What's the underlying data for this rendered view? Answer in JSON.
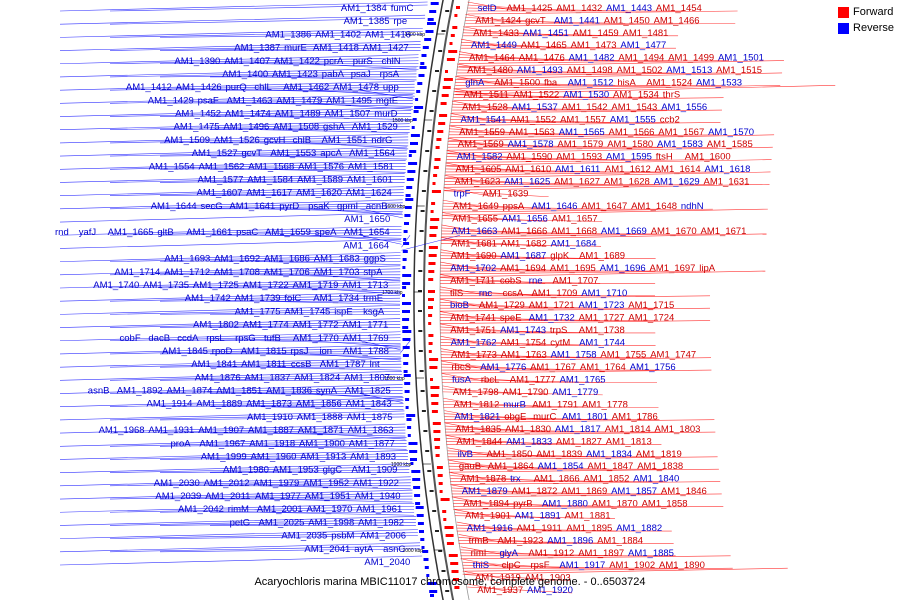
{
  "caption": "Acaryochloris marina MBIC11017 chromosome, complete genome. - 0..6503724",
  "legend": [
    {
      "label": "Forward",
      "color": "#ff0000"
    },
    {
      "label": "Reverse",
      "color": "#0000ff"
    }
  ],
  "colors": {
    "forward": "#ff0000",
    "reverse": "#0000ff",
    "backbone": "#555555"
  },
  "scale_ticks": [
    "1400 kbp",
    "1500 kbp",
    "1600 kbp",
    "1700 kbp",
    "1800 kbp",
    "1900 kbp",
    "2000 kbp"
  ],
  "left_labels": [
    [
      [
        "AM1_1384",
        "fumC"
      ]
    ],
    [
      [
        "AM1_1385",
        "rpe"
      ]
    ],
    [
      [
        "AM1_1386",
        "AM1_1402",
        "AM1_1416"
      ]
    ],
    [
      [
        "AM1_1387",
        "murE",
        "AM1_1418",
        "AM1_1427"
      ]
    ],
    [
      [
        "AM1_1390",
        "AM1_1407",
        "AM1_1422",
        "pcrA",
        "purS",
        "chlN"
      ]
    ],
    [
      [
        "AM1_1400",
        "AM1_1423",
        "pabA",
        "psaJ",
        "rpsA"
      ]
    ],
    [
      [
        "AM1_1412",
        "AM1_1426",
        "purQ",
        "chlL",
        "AM1_1462",
        "AM1_1478",
        "upp"
      ]
    ],
    [
      [
        "AM1_1429",
        "psaF",
        "AM1_1463",
        "AM1_1479",
        "AM1_1495",
        "mgtE"
      ]
    ],
    [
      [
        "AM1_1452",
        "AM1_1474",
        "AM1_1489",
        "AM1_1507",
        "murD"
      ]
    ],
    [
      [
        "AM1_1475",
        "AM1_1496",
        "AM1_1508",
        "gshA",
        "AM1_1529"
      ]
    ],
    [
      [
        "AM1_1509",
        "AM1_1526",
        "gcvH",
        "chlB",
        "AM1_1551",
        "ndrG"
      ]
    ],
    [
      [
        "AM1_1527",
        "gcvT",
        "AM1_1553",
        "apcA",
        "AM1_1564"
      ]
    ],
    [
      [
        "AM1_1554",
        "AM1_1562",
        "AM1_1568",
        "AM1_1576",
        "AM1_1581"
      ]
    ],
    [
      [
        "AM1_1577",
        "AM1_1584",
        "AM1_1589",
        "AM1_1601"
      ]
    ],
    [
      [
        "AM1_1607",
        "AM1_1617",
        "AM1_1620",
        "AM1_1624"
      ]
    ],
    [
      [
        "AM1_1644",
        "secG",
        "AM1_1641",
        "pyrD",
        "psaK",
        "gpmI",
        "acnB"
      ]
    ],
    [
      [
        "AM1_1650"
      ]
    ],
    [
      [
        "rnd",
        "yafJ",
        "AM1_1665",
        "gltB",
        "AM1_1661",
        "psaC",
        "AM1_1659",
        "speA",
        "AM1_1654"
      ]
    ],
    [
      [
        "AM1_1664"
      ]
    ],
    [
      [
        "AM1_1693",
        "AM1_1692",
        "AM1_1686",
        "AM1_1683",
        "ggpS"
      ]
    ],
    [
      [
        "AM1_1714",
        "AM1_1712",
        "AM1_1708",
        "AM1_1706",
        "AM1_1703",
        "stpA"
      ]
    ],
    [
      [
        "AM1_1740",
        "AM1_1735",
        "AM1_1725",
        "AM1_1722",
        "AM1_1719",
        "AM1_1713"
      ]
    ],
    [
      [
        "AM1_1742",
        "AM1_1739",
        "folC",
        "AM1_1734",
        "trmE"
      ]
    ],
    [
      [
        "AM1_1775",
        "AM1_1745",
        "ispE",
        "ksgA"
      ]
    ],
    [
      [
        "AM1_1802",
        "AM1_1774",
        "AM1_1772",
        "AM1_1771"
      ]
    ],
    [
      [
        "cobF",
        "dacB",
        "ccdA",
        "rpsL",
        "rpsG",
        "tufB",
        "AM1_1770",
        "AM1_1769"
      ]
    ],
    [
      [
        "AM1_1845",
        "rpoD",
        "AM1_1815",
        "rpsJ",
        "ion",
        "AM1_1788"
      ]
    ],
    [
      [
        "AM1_1841",
        "AM1_1811",
        "ccsB",
        "AM1_1787",
        "lnt"
      ]
    ],
    [
      [
        "AM1_1876",
        "AM1_1837",
        "AM1_1824",
        "AM1_1807"
      ]
    ],
    [
      [
        "asnB",
        "AM1_1892",
        "AM1_1874",
        "AM1_1851",
        "AM1_1836",
        "synA",
        "AM1_1825"
      ]
    ],
    [
      [
        "AM1_1914",
        "AM1_1889",
        "AM1_1873",
        "AM1_1856",
        "AM1_1843"
      ]
    ],
    [
      [
        "AM1_1910",
        "AM1_1888",
        "AM1_1875"
      ]
    ],
    [
      [
        "AM1_1968",
        "AM1_1931",
        "AM1_1907",
        "AM1_1887",
        "AM1_1871",
        "AM1_1863"
      ]
    ],
    [
      [
        "proA",
        "AM1_1967",
        "AM1_1918",
        "AM1_1900",
        "AM1_1877"
      ]
    ],
    [
      [
        "AM1_1999",
        "AM1_1960",
        "AM1_1913",
        "AM1_1893"
      ]
    ],
    [
      [
        "AM1_1980",
        "AM1_1953",
        "glgC",
        "AM1_1909"
      ]
    ],
    [
      [
        "AM1_2030",
        "AM1_2012",
        "AM1_1979",
        "AM1_1952",
        "AM1_1922"
      ]
    ],
    [
      [
        "AM1_2039",
        "AM1_2011",
        "AM1_1977",
        "AM1_1951",
        "AM1_1940"
      ]
    ],
    [
      [
        "AM1_2042",
        "rimM",
        "AM1_2001",
        "AM1_1970",
        "AM1_1961"
      ]
    ],
    [
      [
        "petG",
        "AM1_2025",
        "AM1_1998",
        "AM1_1982"
      ]
    ],
    [
      [
        "AM1_2035",
        "psbM",
        "AM1_2006"
      ]
    ],
    [
      [
        "AM1_2041",
        "aytA",
        "asnC"
      ]
    ],
    [
      [
        "AM1_2040"
      ]
    ]
  ],
  "right_labels": [
    [
      [
        "selD",
        "AM1_1425",
        "AM1_1432",
        "AM1_1443",
        "AM1_1454"
      ]
    ],
    [
      [
        "AM1_1424",
        "gcvT",
        "AM1_1441",
        "AM1_1450",
        "AM1_1466"
      ]
    ],
    [
      [
        "AM1_1433",
        "AM1_1451",
        "AM1_1459",
        "AM1_1481"
      ]
    ],
    [
      [
        "AM1_1449",
        "AM1_1465",
        "AM1_1473",
        "AM1_1477"
      ]
    ],
    [
      [
        "AM1_1464",
        "AM1_1476",
        "AM1_1482",
        "AM1_1494",
        "AM1_1499",
        "AM1_1501"
      ]
    ],
    [
      [
        "AM1_1480",
        "AM1_1493",
        "AM1_1498",
        "AM1_1502",
        "AM1_1513",
        "AM1_1515"
      ]
    ],
    [
      [
        "glnA",
        "AM1_1500",
        "fba",
        "AM1_1512",
        "hisA",
        "AM1_1524",
        "AM1_1533"
      ]
    ],
    [
      [
        "AM1_1511",
        "AM1_1522",
        "AM1_1530",
        "AM1_1534",
        "thrS"
      ]
    ],
    [
      [
        "AM1_1528",
        "AM1_1537",
        "AM1_1542",
        "AM1_1543",
        "AM1_1556"
      ]
    ],
    [
      [
        "AM1_1541",
        "AM1_1552",
        "AM1_1557",
        "AM1_1555",
        "ccb2"
      ]
    ],
    [
      [
        "AM1_1559",
        "AM1_1563",
        "AM1_1565",
        "AM1_1566",
        "AM1_1567",
        "AM1_1570"
      ]
    ],
    [
      [
        "AM1_1569",
        "AM1_1578",
        "AM1_1579",
        "AM1_1580",
        "AM1_1583",
        "AM1_1585"
      ]
    ],
    [
      [
        "AM1_1582",
        "AM1_1590",
        "AM1_1593",
        "AM1_1595",
        "ftsH",
        "AM1_1600"
      ]
    ],
    [
      [
        "AM1_1605",
        "AM1_1610",
        "AM1_1611",
        "AM1_1612",
        "AM1_1614",
        "AM1_1618"
      ]
    ],
    [
      [
        "AM1_1623",
        "AM1_1625",
        "AM1_1627",
        "AM1_1628",
        "AM1_1629",
        "AM1_1631"
      ]
    ],
    [
      [
        "trpF",
        "AM1_1639"
      ]
    ],
    [
      [
        "AM1_1649",
        "ppsA",
        "AM1_1646",
        "AM1_1647",
        "AM1_1648",
        "ndhN"
      ]
    ],
    [
      [
        "AM1_1655",
        "AM1_1656",
        "AM1_1657"
      ]
    ],
    [
      [
        "AM1_1663",
        "AM1_1666",
        "AM1_1668",
        "AM1_1669",
        "AM1_1670",
        "AM1_1671"
      ]
    ],
    [
      [
        "AM1_1681",
        "AM1_1682",
        "AM1_1684"
      ]
    ],
    [
      [
        "AM1_1690",
        "AM1_1687",
        "glpK",
        "AM1_1689"
      ]
    ],
    [
      [
        "AM1_1702",
        "AM1_1694",
        "AM1_1695",
        "AM1_1696",
        "AM1_1697",
        "lipA"
      ]
    ],
    [
      [
        "AM1_1711",
        "cobS",
        "rne",
        "AM1_1707"
      ]
    ],
    [
      [
        "tilS",
        "rnc",
        "ccsA",
        "AM1_1709",
        "AM1_1710"
      ]
    ],
    [
      [
        "bioB",
        "AM1_1729",
        "AM1_1721",
        "AM1_1723",
        "AM1_1715"
      ]
    ],
    [
      [
        "AM1_1741",
        "speE",
        "AM1_1732",
        "AM1_1727",
        "AM1_1724"
      ]
    ],
    [
      [
        "AM1_1751",
        "AM1_1743",
        "trpS",
        "AM1_1738"
      ]
    ],
    [
      [
        "AM1_1762",
        "AM1_1754",
        "cytM",
        "AM1_1744"
      ]
    ],
    [
      [
        "AM1_1773",
        "AM1_1763",
        "AM1_1758",
        "AM1_1755",
        "AM1_1747"
      ]
    ],
    [
      [
        "rbcS",
        "AM1_1776",
        "AM1_1767",
        "AM1_1764",
        "AM1_1756"
      ]
    ],
    [
      [
        "fusA",
        "rbcL",
        "AM1_1777",
        "AM1_1765"
      ]
    ],
    [
      [
        "AM1_1798",
        "AM1_1790",
        "AM1_1779"
      ]
    ],
    [
      [
        "AM1_1812",
        "murB",
        "AM1_1791",
        "AM1_1778"
      ]
    ],
    [
      [
        "AM1_1821",
        "obgE",
        "murC",
        "AM1_1801",
        "AM1_1786"
      ]
    ],
    [
      [
        "AM1_1835",
        "AM1_1830",
        "AM1_1817",
        "AM1_1814",
        "AM1_1803"
      ]
    ],
    [
      [
        "AM1_1844",
        "AM1_1833",
        "AM1_1827",
        "AM1_1813"
      ]
    ],
    [
      [
        "ilvB",
        "AM1_1850",
        "AM1_1839",
        "AM1_1834",
        "AM1_1819"
      ]
    ],
    [
      [
        "gauB",
        "AM1_1864",
        "AM1_1854",
        "AM1_1847",
        "AM1_1838"
      ]
    ],
    [
      [
        "AM1_1878",
        "trx",
        "AM1_1866",
        "AM1_1852",
        "AM1_1840"
      ]
    ],
    [
      [
        "AM1_1879",
        "AM1_1872",
        "AM1_1869",
        "AM1_1857",
        "AM1_1846"
      ]
    ],
    [
      [
        "AM1_1894",
        "pyrB",
        "AM1_1880",
        "AM1_1870",
        "AM1_1858"
      ]
    ],
    [
      [
        "AM1_1901",
        "AM1_1891",
        "AM1_1881"
      ]
    ],
    [
      [
        "AM1_1916",
        "AM1_1911",
        "AM1_1895",
        "AM1_1882"
      ]
    ],
    [
      [
        "trmB",
        "AM1_1923",
        "AM1_1896",
        "AM1_1884"
      ]
    ],
    [
      [
        "rimI",
        "glyA",
        "AM1_1912",
        "AM1_1897",
        "AM1_1885"
      ]
    ],
    [
      [
        "thiS",
        "clpC",
        "rpsF",
        "AM1_1917",
        "AM1_1902",
        "AM1_1890"
      ]
    ],
    [
      [
        "AM1_1919",
        "AM1_1903"
      ]
    ],
    [
      [
        "AM1_1937",
        "AM1_1920"
      ]
    ]
  ]
}
